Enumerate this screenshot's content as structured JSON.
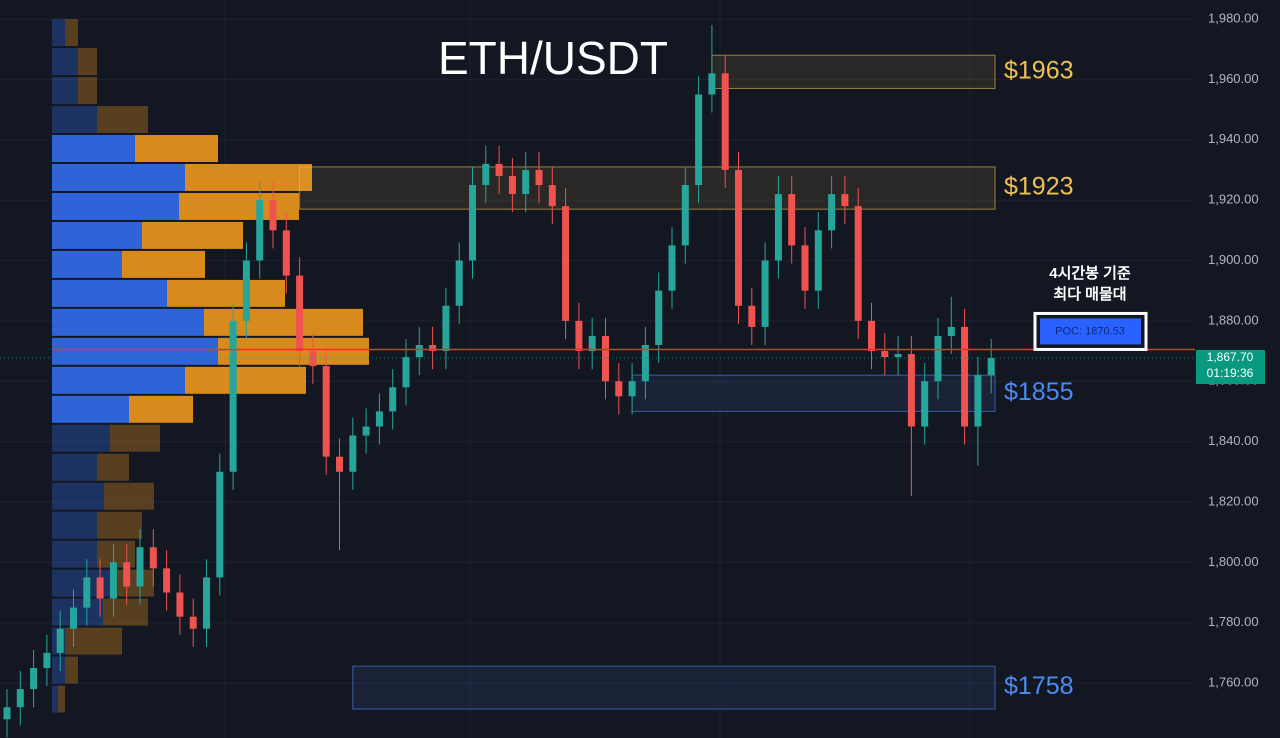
{
  "chart_data": {
    "type": "candlestick",
    "title": "ETH/USDT",
    "ylim": [
      1741.8,
      1986.3
    ],
    "yticks": [
      {
        "value": 1760,
        "label": "1,760.00"
      },
      {
        "value": 1780,
        "label": "1,780.00"
      },
      {
        "value": 1800,
        "label": "1,800.00"
      },
      {
        "value": 1820,
        "label": "1,820.00"
      },
      {
        "value": 1840,
        "label": "1,840.00"
      },
      {
        "value": 1860,
        "label": "1,860.00"
      },
      {
        "value": 1880,
        "label": "1,880.00"
      },
      {
        "value": 1900,
        "label": "1,900.00"
      },
      {
        "value": 1920,
        "label": "1,920.00"
      },
      {
        "value": 1940,
        "label": "1,940.00"
      },
      {
        "value": 1960,
        "label": "1,960.00"
      },
      {
        "value": 1980,
        "label": "1,980.00"
      }
    ],
    "grid": true,
    "up_color": "#26a69a",
    "down_color": "#ef5350",
    "open": [
      1748,
      1752,
      1758,
      1765,
      1770,
      1778,
      1785,
      1795,
      1788,
      1800,
      1792,
      1805,
      1798,
      1790,
      1782,
      1778,
      1795,
      1830,
      1880,
      1900,
      1920,
      1910,
      1895,
      1870,
      1865,
      1835,
      1830,
      1842,
      1845,
      1850,
      1858,
      1868,
      1872,
      1870,
      1885,
      1900,
      1925,
      1932,
      1928,
      1922,
      1930,
      1925,
      1918,
      1880,
      1870,
      1875,
      1860,
      1855,
      1860,
      1872,
      1890,
      1905,
      1925,
      1955,
      1962,
      1930,
      1885,
      1878,
      1900,
      1922,
      1905,
      1890,
      1910,
      1922,
      1918,
      1880,
      1870,
      1868,
      1869,
      1845,
      1860,
      1875,
      1878,
      1845,
      1862
    ],
    "high": [
      1758,
      1764,
      1771,
      1776,
      1784,
      1791,
      1801,
      1801,
      1806,
      1806,
      1811,
      1811,
      1804,
      1796,
      1788,
      1801,
      1836,
      1886,
      1906,
      1926,
      1926,
      1916,
      1901,
      1876,
      1871,
      1841,
      1848,
      1851,
      1856,
      1864,
      1874,
      1878,
      1878,
      1891,
      1906,
      1931,
      1938,
      1938,
      1934,
      1936,
      1936,
      1931,
      1924,
      1886,
      1881,
      1881,
      1866,
      1866,
      1878,
      1896,
      1911,
      1931,
      1961,
      1978,
      1968,
      1936,
      1891,
      1906,
      1928,
      1928,
      1911,
      1916,
      1928,
      1928,
      1924,
      1886,
      1876,
      1875,
      1875,
      1866,
      1881,
      1888,
      1884,
      1868,
      1874
    ],
    "low": [
      1742,
      1746,
      1752,
      1759,
      1764,
      1772,
      1779,
      1782,
      1782,
      1786,
      1786,
      1792,
      1784,
      1776,
      1772,
      1772,
      1789,
      1824,
      1874,
      1894,
      1904,
      1889,
      1864,
      1859,
      1829,
      1804,
      1824,
      1836,
      1839,
      1844,
      1852,
      1862,
      1864,
      1864,
      1879,
      1894,
      1919,
      1922,
      1916,
      1916,
      1919,
      1912,
      1874,
      1864,
      1864,
      1854,
      1849,
      1849,
      1854,
      1866,
      1884,
      1899,
      1919,
      1949,
      1924,
      1879,
      1872,
      1872,
      1894,
      1899,
      1884,
      1884,
      1904,
      1912,
      1874,
      1864,
      1862,
      1862,
      1822,
      1839,
      1854,
      1869,
      1839,
      1832,
      1856
    ],
    "close": [
      1752,
      1758,
      1765,
      1770,
      1778,
      1785,
      1795,
      1788,
      1800,
      1792,
      1805,
      1798,
      1790,
      1782,
      1778,
      1795,
      1830,
      1880,
      1900,
      1920,
      1910,
      1895,
      1870,
      1865,
      1835,
      1830,
      1842,
      1845,
      1850,
      1858,
      1868,
      1872,
      1870,
      1885,
      1900,
      1925,
      1932,
      1928,
      1922,
      1930,
      1925,
      1918,
      1880,
      1870,
      1875,
      1860,
      1855,
      1860,
      1872,
      1890,
      1905,
      1925,
      1955,
      1962,
      1930,
      1885,
      1878,
      1900,
      1922,
      1905,
      1890,
      1910,
      1922,
      1918,
      1880,
      1870,
      1868,
      1869,
      1845,
      1860,
      1875,
      1878,
      1845,
      1862,
      1867.7
    ],
    "profile": {
      "buy_color": "#2f64d8",
      "sell_color": "#d98a1c",
      "value_area": [
        1846,
        1941
      ],
      "price": [
        1975.5,
        1965.9,
        1956.3,
        1946.7,
        1937.1,
        1927.5,
        1917.9,
        1908.3,
        1898.7,
        1889.1,
        1879.5,
        1869.9,
        1860.3,
        1850.7,
        1841.1,
        1831.5,
        1821.9,
        1812.3,
        1802.7,
        1793.1,
        1783.5,
        1773.9,
        1764.3,
        1754.7
      ],
      "buy": [
        13,
        26,
        26,
        45,
        83,
        133,
        127,
        90,
        70,
        115,
        152,
        166,
        133,
        77,
        58,
        45,
        52,
        45,
        45,
        58,
        51,
        13,
        13,
        6
      ],
      "sell": [
        13,
        19,
        19,
        51,
        83,
        127,
        120,
        101,
        83,
        118,
        159,
        151,
        121,
        64,
        50,
        32,
        50,
        45,
        38,
        44,
        45,
        57,
        13,
        7
      ]
    },
    "zones": [
      {
        "label": "$1963",
        "top": 1968,
        "bottom": 1957,
        "start": 53,
        "color": "#f0c050"
      },
      {
        "label": "$1923",
        "top": 1931,
        "bottom": 1917,
        "start": 22,
        "color": "#f0c050"
      },
      {
        "label": "$1855",
        "top": 1862,
        "bottom": 1850,
        "start": 47,
        "color": "#4a8af4"
      },
      {
        "label": "$1758",
        "top": 1765.6,
        "bottom": 1751.4,
        "start": 26,
        "color": "#4a8af4"
      }
    ],
    "poc": {
      "value": 1870.53,
      "label": "POC: 1870.53",
      "note": [
        "4시간봉 기준",
        "최다 매물대"
      ],
      "color": "#ff2a2a"
    },
    "last_price": {
      "value": 1867.7,
      "label": "1,867.70",
      "countdown": "01:19:36",
      "color": "#089981"
    }
  }
}
